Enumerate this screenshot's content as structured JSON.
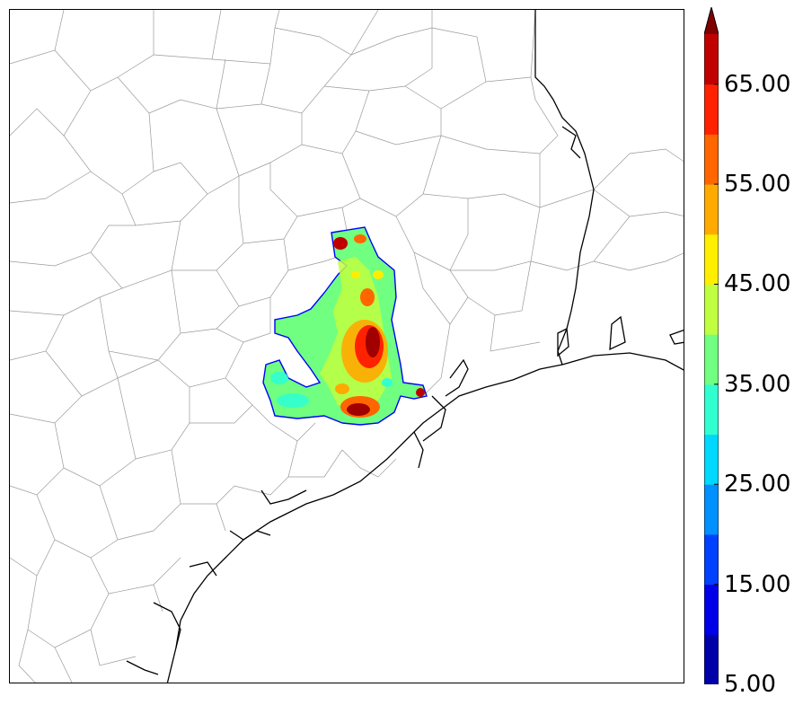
{
  "colorbar": {
    "labels": [
      "5.00",
      "15.00",
      "25.00",
      "35.00",
      "45.00",
      "55.00",
      "65.00"
    ],
    "levels": [
      5,
      10,
      15,
      20,
      25,
      30,
      35,
      40,
      45,
      50,
      55,
      60,
      65,
      70
    ],
    "colors": [
      "#0000a8",
      "#0000e8",
      "#0040ff",
      "#0090ff",
      "#00d8ff",
      "#30ffd0",
      "#70ff80",
      "#c0ff40",
      "#ffee00",
      "#ffaa00",
      "#ff6600",
      "#ff2200",
      "#c00000",
      "#800000"
    ],
    "extend": "max"
  },
  "map": {
    "county_line_color": "#999999",
    "coastline_color": "#000000",
    "background": "#ffffff"
  }
}
